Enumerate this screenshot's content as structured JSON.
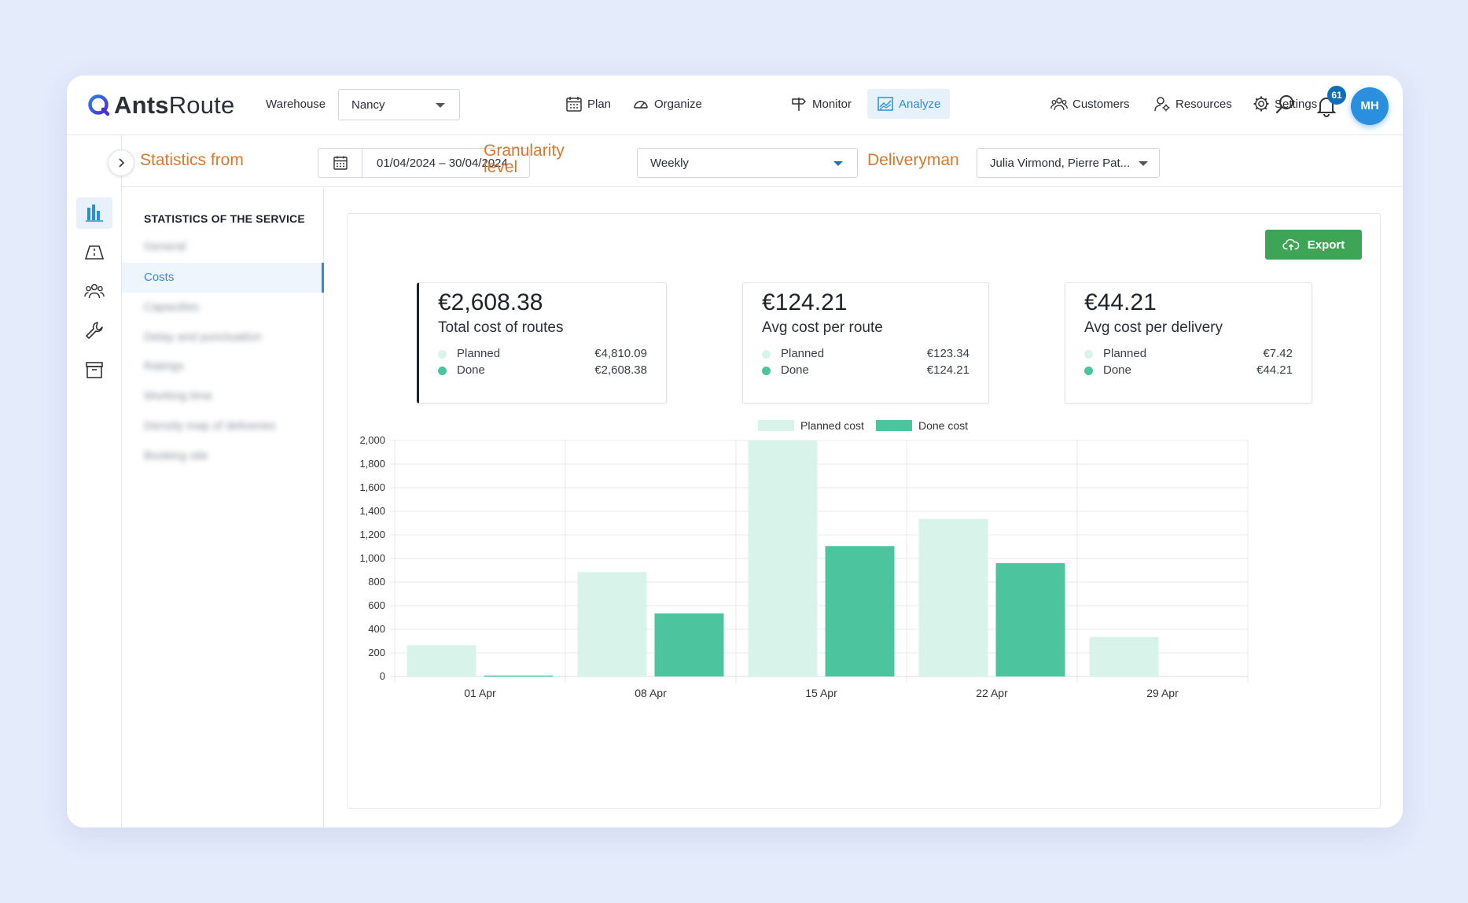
{
  "app": {
    "logo_bold": "Ants",
    "logo_rest": "Route",
    "warehouse_label": "Warehouse",
    "warehouse_value": "Nancy"
  },
  "nav": {
    "plan": "Plan",
    "organize": "Organize",
    "monitor": "Monitor",
    "analyze": "Analyze",
    "customers": "Customers",
    "resources": "Resources",
    "settings": "Settings",
    "notifications_count": "61",
    "avatar_initials": "MH"
  },
  "filters": {
    "statistics_from": "Statistics from",
    "date_range": "01/04/2024 – 30/04/2024",
    "granularity_label_1": "Granularity",
    "granularity_label_2": "level",
    "granularity_value": "Weekly",
    "deliveryman_label": "Deliveryman",
    "deliveryman_value": "Julia Virmond, Pierre Pat..."
  },
  "menu": {
    "title": "STATISTICS OF THE SERVICE",
    "items": [
      "General",
      "Costs",
      "Capacities",
      "Delay and punctuation",
      "Ratings",
      "Working time",
      "Density map of deliveries",
      "Booking site"
    ],
    "active_index": 1
  },
  "export_label": "Export",
  "kpis": [
    {
      "value": "€2,608.38",
      "label": "Total cost of routes",
      "planned_label": "Planned",
      "planned": "€4,810.09",
      "done_label": "Done",
      "done": "€2,608.38"
    },
    {
      "value": "€124.21",
      "label": "Avg cost per route",
      "planned_label": "Planned",
      "planned": "€123.34",
      "done_label": "Done",
      "done": "€124.21"
    },
    {
      "value": "€44.21",
      "label": "Avg cost per delivery",
      "planned_label": "Planned",
      "planned": "€7.42",
      "done_label": "Done",
      "done": "€44.21"
    }
  ],
  "colors": {
    "planned": "#d8f3ea",
    "done": "#4cc49d",
    "accent": "#2b8fd6",
    "orange": "#d9782c",
    "export": "#3fa556"
  },
  "chart_data": {
    "type": "bar",
    "categories": [
      "01 Apr",
      "08 Apr",
      "15 Apr",
      "22 Apr",
      "29 Apr"
    ],
    "series": [
      {
        "name": "Planned cost",
        "values": [
          265,
          885,
          2000,
          1335,
          335
        ]
      },
      {
        "name": "Done cost",
        "values": [
          8,
          535,
          1105,
          960,
          0
        ]
      }
    ],
    "ylim": [
      0,
      2000
    ],
    "yticks": [
      "0",
      "200",
      "400",
      "600",
      "800",
      "1,000",
      "1,200",
      "1,400",
      "1,600",
      "1,800",
      "2,000"
    ],
    "grid": true,
    "legend": "top"
  }
}
